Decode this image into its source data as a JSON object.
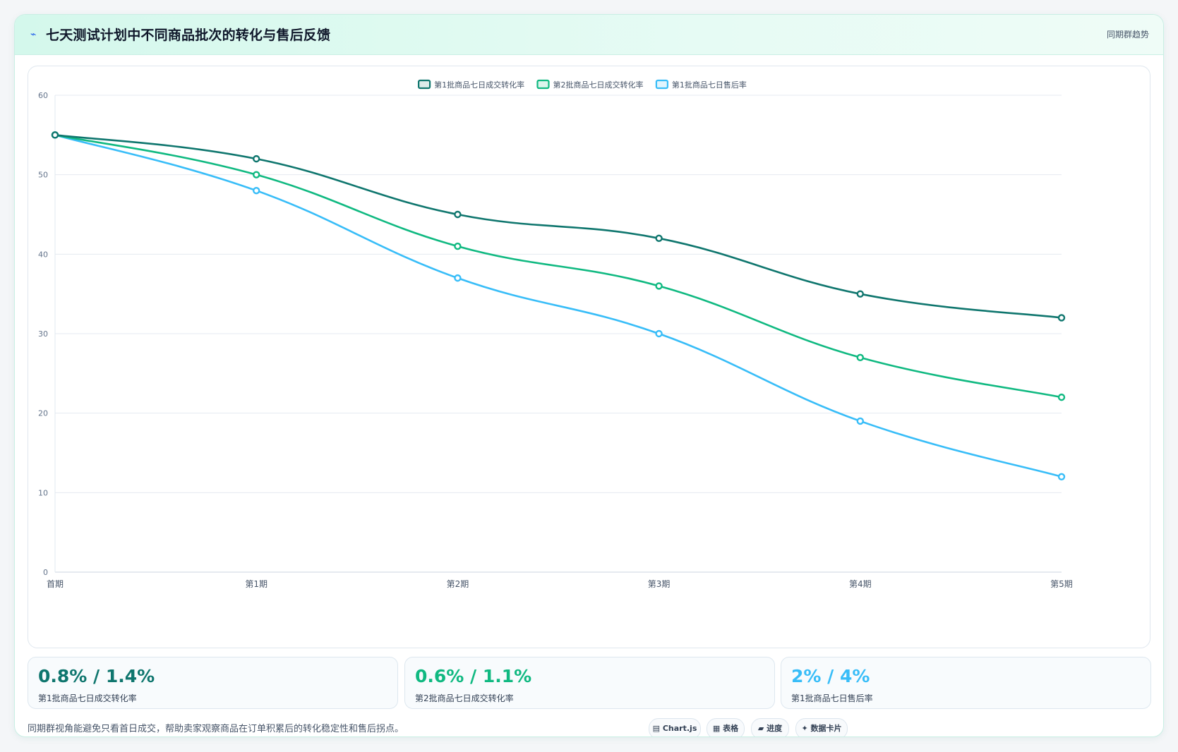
{
  "header": {
    "icon": "trend-icon",
    "title": "七天测试计划中不同商品批次的转化与售后反馈",
    "tag": "同期群趋势"
  },
  "chart_data": {
    "type": "line",
    "categories": [
      "首期",
      "第1期",
      "第2期",
      "第3期",
      "第4期",
      "第5期"
    ],
    "ylim": [
      0,
      60
    ],
    "yticks": [
      0,
      10,
      20,
      30,
      40,
      50,
      60
    ],
    "grid": true,
    "legend_position": "top-center",
    "series": [
      {
        "name": "第1批商品七日成交转化率",
        "color": "#0f766e",
        "values": [
          55,
          52,
          45,
          42,
          35,
          32
        ]
      },
      {
        "name": "第2批商品七日成交转化率",
        "color": "#10b981",
        "values": [
          55,
          50,
          41,
          36,
          27,
          22
        ]
      },
      {
        "name": "第1批商品七日售后率",
        "color": "#38bdf8",
        "values": [
          55,
          48,
          37,
          30,
          19,
          12
        ]
      }
    ]
  },
  "kpis": [
    {
      "value": "0.8% / 1.4%",
      "label": "第1批商品七日成交转化率",
      "color": "#0f766e"
    },
    {
      "value": "0.6% / 1.1%",
      "label": "第2批商品七日成交转化率",
      "color": "#10b981"
    },
    {
      "value": "2% / 4%",
      "label": "第1批商品七日售后率",
      "color": "#38bdf8"
    }
  ],
  "footer": {
    "note": "同期群视角能避免只看首日成交，帮助卖家观察商品在订单积累后的转化稳定性和售后拐点。",
    "chips": [
      {
        "icon": "chart-icon",
        "glyph": "▤",
        "label": "Chart.js"
      },
      {
        "icon": "table-icon",
        "glyph": "▦",
        "label": "表格"
      },
      {
        "icon": "progress-icon",
        "glyph": "▰",
        "label": "进度"
      },
      {
        "icon": "sparkle-icon",
        "glyph": "✦",
        "label": "数据卡片"
      }
    ]
  }
}
